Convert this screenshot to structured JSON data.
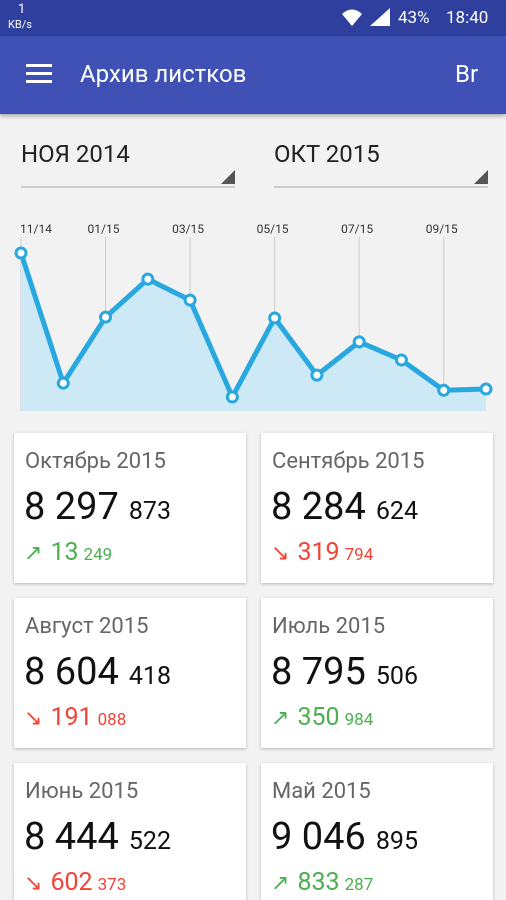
{
  "status_bar": {
    "speed": "1",
    "speed_unit": "KB/s",
    "battery": "43%",
    "time": "18:40"
  },
  "toolbar": {
    "title": "Архив листков",
    "action": "Br"
  },
  "filters": {
    "from": "НОЯ 2014",
    "to": "ОКТ 2015"
  },
  "chart_data": {
    "type": "line",
    "color": "#29a8e0",
    "fill": "#cde9f5",
    "categories": [
      "11/14",
      null,
      "01/15",
      null,
      "03/15",
      null,
      "05/15",
      null,
      "07/15",
      null,
      "09/15",
      null
    ],
    "values": [
      9733000,
      8360000,
      9056000,
      9457000,
      9236000,
      8214000,
      9046895,
      8444522,
      8795506,
      8604418,
      8284624,
      8297873
    ]
  },
  "cards": [
    {
      "title": "Октябрь 2015",
      "value_major": "8 297",
      "value_minor": "873",
      "direction": "up",
      "arrow": "↗",
      "change_major": "13",
      "change_minor": "249"
    },
    {
      "title": "Сентябрь 2015",
      "value_major": "8 284",
      "value_minor": "624",
      "direction": "down",
      "arrow": "↘",
      "change_major": "319",
      "change_minor": "794"
    },
    {
      "title": "Август 2015",
      "value_major": "8 604",
      "value_minor": "418",
      "direction": "down",
      "arrow": "↘",
      "change_major": "191",
      "change_minor": "088"
    },
    {
      "title": "Июль 2015",
      "value_major": "8 795",
      "value_minor": "506",
      "direction": "up",
      "arrow": "↗",
      "change_major": "350",
      "change_minor": "984"
    },
    {
      "title": "Июнь 2015",
      "value_major": "8 444",
      "value_minor": "522",
      "direction": "down",
      "arrow": "↘",
      "change_major": "602",
      "change_minor": "373"
    },
    {
      "title": "Май 2015",
      "value_major": "9 046",
      "value_minor": "895",
      "direction": "up",
      "arrow": "↗",
      "change_major": "833",
      "change_minor": "287"
    }
  ]
}
